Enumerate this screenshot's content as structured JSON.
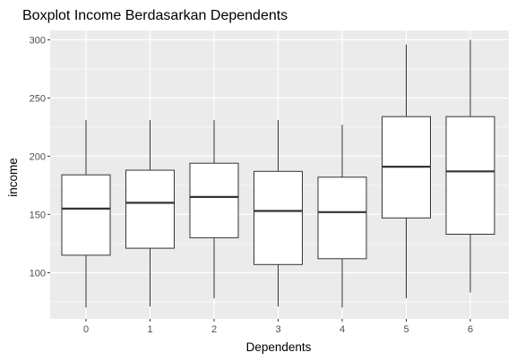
{
  "chart_data": {
    "type": "boxplot",
    "title": "Boxplot Income Berdasarkan Dependents",
    "xlabel": "Dependents",
    "ylabel": "income",
    "categories": [
      "0",
      "1",
      "2",
      "3",
      "4",
      "5",
      "6"
    ],
    "y_ticks": [
      100,
      150,
      200,
      250,
      300
    ],
    "ylim": [
      60,
      308
    ],
    "grid": true,
    "background": "#EBEBEB",
    "gridline_color": "#FFFFFF",
    "box_fill": "#FFFFFF",
    "box_stroke": "#333333",
    "boxes": [
      {
        "category": "0",
        "min": 70,
        "q1": 115,
        "median": 155,
        "q3": 184,
        "max": 231
      },
      {
        "category": "1",
        "min": 71,
        "q1": 121,
        "median": 160,
        "q3": 188,
        "max": 231
      },
      {
        "category": "2",
        "min": 78,
        "q1": 130,
        "median": 165,
        "q3": 194,
        "max": 231
      },
      {
        "category": "3",
        "min": 71,
        "q1": 107,
        "median": 153,
        "q3": 187,
        "max": 231
      },
      {
        "category": "4",
        "min": 70,
        "q1": 112,
        "median": 152,
        "q3": 182,
        "max": 227
      },
      {
        "category": "5",
        "min": 78,
        "q1": 147,
        "median": 191,
        "q3": 234,
        "max": 296
      },
      {
        "category": "6",
        "min": 83,
        "q1": 133,
        "median": 187,
        "q3": 234,
        "max": 300
      }
    ]
  }
}
